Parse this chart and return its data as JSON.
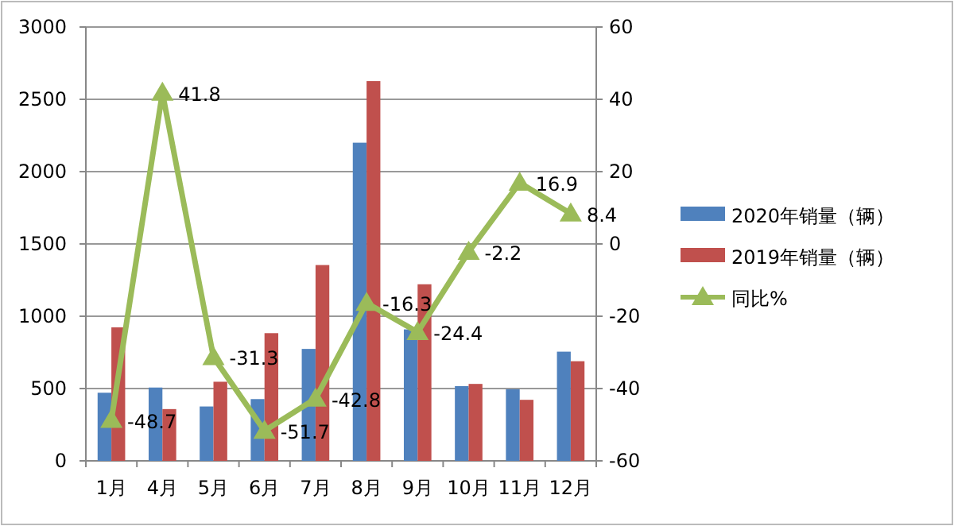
{
  "chart_data": {
    "type": "bar",
    "categories": [
      "1月",
      "4月",
      "5月",
      "6月",
      "7月",
      "8月",
      "9月",
      "10月",
      "11月",
      "12月"
    ],
    "ylim": [
      0,
      3000
    ],
    "yticks": [
      0,
      500,
      1000,
      1500,
      2000,
      2500,
      3000
    ],
    "y2lim": [
      -60,
      60
    ],
    "y2ticks": [
      -60,
      -40,
      -20,
      0,
      20,
      40,
      60
    ],
    "grid": "y",
    "legend": "right",
    "series": [
      {
        "name": "2020年销量（辆）",
        "color": "#4f81bd",
        "values": [
          471,
          507,
          376,
          427,
          774,
          2200,
          909,
          517,
          495,
          755
        ]
      },
      {
        "name": "2019年销量（辆）",
        "color": "#c0504d",
        "values": [
          923,
          358,
          547,
          883,
          1354,
          2626,
          1221,
          532,
          422,
          689
        ]
      },
      {
        "name": "同比%",
        "type": "line",
        "axis": "y2",
        "color": "#9bbb59",
        "marker": "triangle",
        "line_style": "solid",
        "values": [
          -48.7,
          41.8,
          -31.3,
          -51.7,
          -42.8,
          -16.3,
          -24.4,
          -2.2,
          16.9,
          8.4
        ],
        "value_labels": [
          "-48.7",
          "41.8",
          "-31.3",
          "-51.7",
          "-42.8",
          "-16.3",
          "-24.4",
          "-2.2",
          "16.9",
          "8.4"
        ]
      }
    ]
  }
}
